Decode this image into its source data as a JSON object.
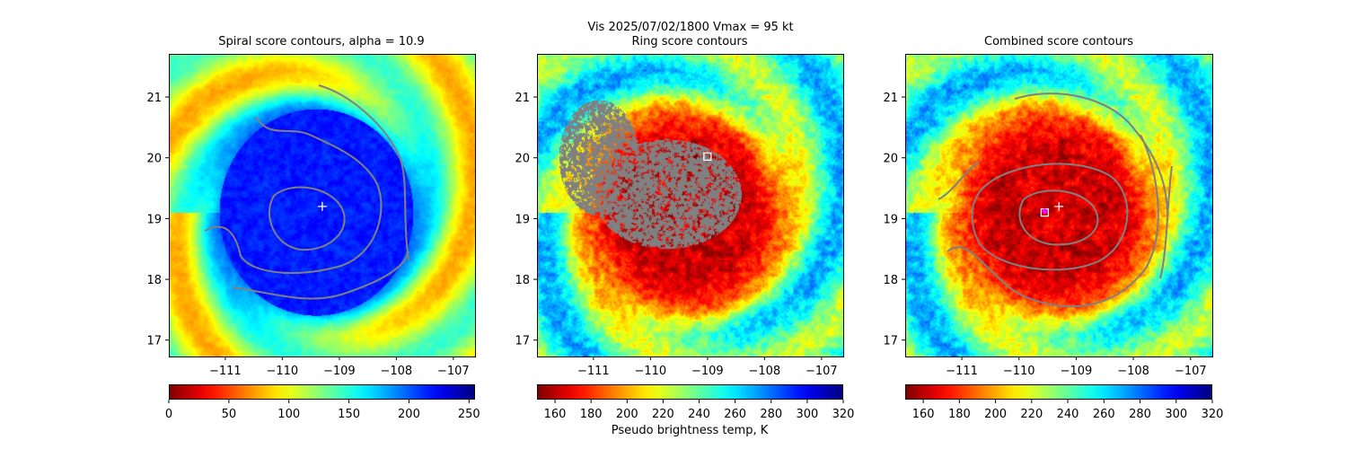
{
  "suptitle": "Vis  2025/07/02/1800    Vmax = 95 kt",
  "chart_data": [
    {
      "type": "heatmap",
      "title": "Spiral score contours, alpha = 10.9",
      "xlim": [
        -111.99,
        -106.62
      ],
      "ylim": [
        16.73,
        21.71
      ],
      "xticks": [
        -111,
        -110,
        -109,
        -108,
        -107
      ],
      "yticks": [
        17,
        18,
        19,
        20,
        21
      ],
      "xtick_labels": [
        "−111",
        "−110",
        "−109",
        "−108",
        "−107"
      ],
      "ytick_labels": [
        "17",
        "18",
        "19",
        "20",
        "21"
      ],
      "colormap": "jet_r",
      "colorbar": {
        "range": [
          0,
          255
        ],
        "ticks": [
          0,
          50,
          100,
          150,
          200,
          250
        ],
        "tick_labels": [
          "0",
          "50",
          "100",
          "150",
          "200",
          "250"
        ],
        "label": ""
      },
      "markers": [
        {
          "symbol": "plus",
          "lon": -109.3,
          "lat": 19.2,
          "color": "#ffffff"
        }
      ],
      "contour_color": "#808080"
    },
    {
      "type": "heatmap",
      "title": "Ring score contours",
      "xlim": [
        -111.99,
        -106.62
      ],
      "ylim": [
        16.73,
        21.71
      ],
      "xticks": [
        -111,
        -110,
        -109,
        -108,
        -107
      ],
      "yticks": [
        17,
        18,
        19,
        20,
        21
      ],
      "xtick_labels": [
        "−111",
        "−110",
        "−109",
        "−108",
        "−107"
      ],
      "ytick_labels": [
        "17",
        "18",
        "19",
        "20",
        "21"
      ],
      "colormap": "jet_r",
      "colorbar": {
        "range": [
          150,
          320
        ],
        "ticks": [
          160,
          180,
          200,
          220,
          240,
          260,
          280,
          300,
          320
        ],
        "tick_labels": [
          "160",
          "180",
          "200",
          "220",
          "240",
          "260",
          "280",
          "300",
          "320"
        ],
        "label": "Pseudo brightness temp, K"
      },
      "markers": [
        {
          "symbol": "square",
          "lon": -109.0,
          "lat": 20.02,
          "color": "#ffffff"
        }
      ],
      "contour_color": "#808080"
    },
    {
      "type": "heatmap",
      "title": "Combined score contours",
      "xlim": [
        -111.99,
        -106.62
      ],
      "ylim": [
        16.73,
        21.71
      ],
      "xticks": [
        -111,
        -110,
        -109,
        -108,
        -107
      ],
      "yticks": [
        17,
        18,
        19,
        20,
        21
      ],
      "xtick_labels": [
        "−111",
        "−110",
        "−109",
        "−108",
        "−107"
      ],
      "ytick_labels": [
        "17",
        "18",
        "19",
        "20",
        "21"
      ],
      "colormap": "jet_r",
      "colorbar": {
        "range": [
          150,
          320
        ],
        "ticks": [
          160,
          180,
          200,
          220,
          240,
          260,
          280,
          300,
          320
        ],
        "tick_labels": [
          "160",
          "180",
          "200",
          "220",
          "240",
          "260",
          "280",
          "300",
          "320"
        ],
        "label": ""
      },
      "markers": [
        {
          "symbol": "plus",
          "lon": -109.3,
          "lat": 19.2,
          "color": "#ffffff"
        },
        {
          "symbol": "square",
          "lon": -109.55,
          "lat": 19.1,
          "color": "#ffffff"
        },
        {
          "symbol": "circle",
          "lon": -109.55,
          "lat": 19.12,
          "color": "#ff00ff"
        }
      ],
      "contour_color": "#808080"
    }
  ]
}
